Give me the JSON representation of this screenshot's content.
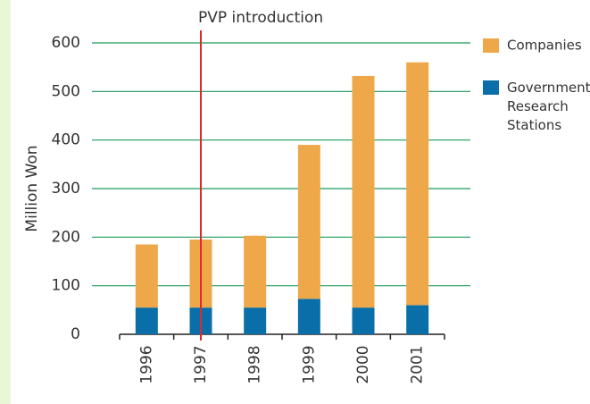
{
  "chart_data": {
    "type": "stacked_bar",
    "y_label": "Million Won",
    "annotation": {
      "text": "PVP introduction",
      "category": "1997",
      "color": "#e3262b"
    },
    "categories": [
      "1996",
      "1997",
      "1998",
      "1999",
      "2000",
      "2001"
    ],
    "series": [
      {
        "name": "Government Research Stations",
        "color": "#0a6fa8",
        "values": [
          55,
          55,
          55,
          73,
          55,
          60
        ]
      },
      {
        "name": "Companies",
        "color": "#eea84a",
        "values": [
          130,
          140,
          148,
          317,
          477,
          500
        ]
      }
    ],
    "ylim": [
      0,
      600
    ],
    "yticks": [
      0,
      100,
      200,
      300,
      400,
      500,
      600
    ],
    "grid": true,
    "grid_color": "#1f9a5a",
    "legend": "right"
  }
}
